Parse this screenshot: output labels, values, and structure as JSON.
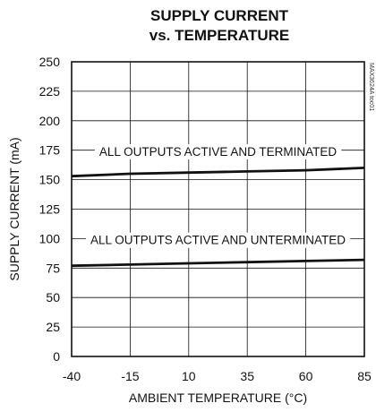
{
  "chart_data": {
    "type": "line",
    "title_lines": [
      "SUPPLY CURRENT",
      "vs. TEMPERATURE"
    ],
    "xlabel": "AMBIENT TEMPERATURE (°C)",
    "ylabel": "SUPPLY CURRENT (mA)",
    "xlim": [
      -40,
      85
    ],
    "ylim": [
      0,
      250
    ],
    "x_ticks": [
      -40,
      -15,
      10,
      35,
      60,
      85
    ],
    "y_ticks": [
      0,
      25,
      50,
      75,
      100,
      125,
      150,
      175,
      200,
      225,
      250
    ],
    "grid": true,
    "series": [
      {
        "name": "ALL OUTPUTS ACTIVE AND TERMINATED",
        "color": "#111111",
        "x": [
          -40,
          -15,
          10,
          35,
          60,
          85
        ],
        "values": [
          153,
          155,
          156,
          157,
          158,
          160
        ]
      },
      {
        "name": "ALL OUTPUTS ACTIVE AND UNTERMINATED",
        "color": "#111111",
        "x": [
          -40,
          -15,
          10,
          35,
          60,
          85
        ],
        "values": [
          77,
          78,
          79,
          80,
          81,
          82
        ]
      }
    ],
    "annotations": [
      {
        "text": "ALL OUTPUTS ACTIVE AND TERMINATED",
        "series": 0
      },
      {
        "text": "ALL OUTPUTS ACTIVE AND UNTERMINATED",
        "series": 1
      }
    ],
    "figure_code": "MAX3624A toc01"
  }
}
